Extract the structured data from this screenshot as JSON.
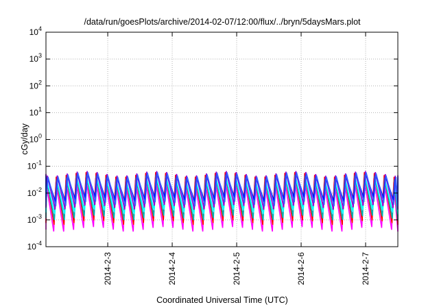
{
  "chart_data": {
    "type": "line",
    "title": "/data/run/goesPlots/archive/2014-02-07/12:00/flux/../bryn/5daysMars.plot",
    "xlabel": "Coordinated Universal Time (UTC)",
    "ylabel": "cGy/day",
    "yscale": "log",
    "ylim": [
      0.0001,
      10000
    ],
    "xlim": [
      "2014-02-02T01:00",
      "2014-02-07T12:00"
    ],
    "grid": true,
    "legend": "none",
    "y_ticks": [
      {
        "base": "10",
        "exp": "-4"
      },
      {
        "base": "10",
        "exp": "-3"
      },
      {
        "base": "10",
        "exp": "-2"
      },
      {
        "base": "10",
        "exp": "-1"
      },
      {
        "base": "10",
        "exp": "0"
      },
      {
        "base": "10",
        "exp": "1"
      },
      {
        "base": "10",
        "exp": "2"
      },
      {
        "base": "10",
        "exp": "3"
      },
      {
        "base": "10",
        "exp": "4"
      }
    ],
    "x_ticks": [
      "2014-2-3",
      "2014-2-4",
      "2014-2-5",
      "2014-2-6",
      "2014-2-7"
    ],
    "pattern": {
      "description_period_hours": 3.7,
      "series": [
        {
          "color": "#ff00ff",
          "peak": 0.032,
          "trough": 0.00045
        },
        {
          "color": "#ff0000",
          "peak": 0.05,
          "trough": 0.0008
        },
        {
          "color": "#00b0b0",
          "peak": 0.04,
          "trough": 0.0012
        },
        {
          "color": "#00ffff",
          "peak": 0.035,
          "trough": 0.002
        },
        {
          "color": "#9400d3",
          "peak": 0.055,
          "trough": 0.003
        },
        {
          "color": "#0000ff",
          "peak": 0.045,
          "trough": 0.006
        },
        {
          "color": "#3a5fff",
          "peak": 0.05,
          "trough": 0.004
        }
      ]
    }
  }
}
